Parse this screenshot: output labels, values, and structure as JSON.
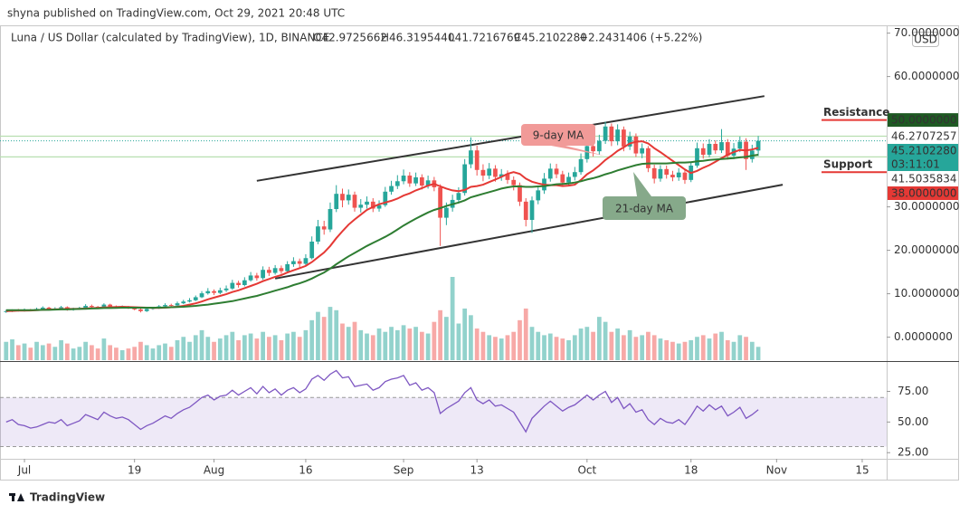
{
  "header": {
    "published": "shyna published on TradingView.com, Oct 29, 2021 20:48 UTC"
  },
  "footer": {
    "logo": "TradingView"
  },
  "chart_data": {
    "type": "candlestick",
    "title": "Luna / US Dollar (calculated by TradingView), 1D, BINANCE",
    "ohlc_labels": [
      "O42.9725662",
      "H46.3195440",
      "L41.7216769",
      "C45.2102280",
      "+2.2431406 (+5.22%)"
    ],
    "ohlc_color": "#26a69a",
    "currency": "USD",
    "up_color": "#26a69a",
    "down_color": "#ef5350",
    "x": [
      "2021-06-28",
      "2021-06-29",
      "2021-06-30",
      "2021-07-01",
      "2021-07-02",
      "2021-07-03",
      "2021-07-04",
      "2021-07-05",
      "2021-07-06",
      "2021-07-07",
      "2021-07-08",
      "2021-07-09",
      "2021-07-10",
      "2021-07-11",
      "2021-07-12",
      "2021-07-13",
      "2021-07-14",
      "2021-07-15",
      "2021-07-16",
      "2021-07-17",
      "2021-07-18",
      "2021-07-19",
      "2021-07-20",
      "2021-07-21",
      "2021-07-22",
      "2021-07-23",
      "2021-07-24",
      "2021-07-25",
      "2021-07-26",
      "2021-07-27",
      "2021-07-28",
      "2021-07-29",
      "2021-07-30",
      "2021-07-31",
      "2021-08-01",
      "2021-08-02",
      "2021-08-03",
      "2021-08-04",
      "2021-08-05",
      "2021-08-06",
      "2021-08-07",
      "2021-08-08",
      "2021-08-09",
      "2021-08-10",
      "2021-08-11",
      "2021-08-12",
      "2021-08-13",
      "2021-08-14",
      "2021-08-15",
      "2021-08-16",
      "2021-08-17",
      "2021-08-18",
      "2021-08-19",
      "2021-08-20",
      "2021-08-21",
      "2021-08-22",
      "2021-08-23",
      "2021-08-24",
      "2021-08-25",
      "2021-08-26",
      "2021-08-27",
      "2021-08-28",
      "2021-08-29",
      "2021-08-30",
      "2021-08-31",
      "2021-09-01",
      "2021-09-02",
      "2021-09-03",
      "2021-09-04",
      "2021-09-05",
      "2021-09-06",
      "2021-09-07",
      "2021-09-08",
      "2021-09-09",
      "2021-09-10",
      "2021-09-11",
      "2021-09-12",
      "2021-09-13",
      "2021-09-14",
      "2021-09-15",
      "2021-09-16",
      "2021-09-17",
      "2021-09-18",
      "2021-09-19",
      "2021-09-20",
      "2021-09-21",
      "2021-09-22",
      "2021-09-23",
      "2021-09-24",
      "2021-09-25",
      "2021-09-26",
      "2021-09-27",
      "2021-09-28",
      "2021-09-29",
      "2021-09-30",
      "2021-10-01",
      "2021-10-02",
      "2021-10-03",
      "2021-10-04",
      "2021-10-05",
      "2021-10-06",
      "2021-10-07",
      "2021-10-08",
      "2021-10-09",
      "2021-10-10",
      "2021-10-11",
      "2021-10-12",
      "2021-10-13",
      "2021-10-14",
      "2021-10-15",
      "2021-10-16",
      "2021-10-17",
      "2021-10-18",
      "2021-10-19",
      "2021-10-20",
      "2021-10-21",
      "2021-10-22",
      "2021-10-23",
      "2021-10-24",
      "2021-10-25",
      "2021-10-26",
      "2021-10-27",
      "2021-10-28",
      "2021-10-29"
    ],
    "open": [
      5.9,
      6.0,
      6.2,
      6.1,
      6.3,
      6.2,
      6.5,
      6.8,
      6.4,
      6.6,
      6.9,
      6.3,
      6.5,
      6.7,
      7.2,
      7.0,
      6.8,
      7.5,
      7.1,
      6.9,
      7.0,
      6.8,
      6.4,
      6.0,
      6.5,
      6.7,
      7.1,
      7.4,
      7.3,
      7.8,
      8.2,
      8.5,
      9.2,
      10.1,
      10.6,
      10.2,
      10.8,
      11.2,
      12.5,
      12.0,
      13.1,
      14.2,
      13.6,
      15.5,
      14.8,
      15.9,
      15.2,
      16.8,
      17.5,
      16.9,
      18.2,
      22.0,
      25.5,
      24.8,
      29.5,
      33.0,
      31.5,
      32.8,
      29.8,
      30.5,
      31.2,
      29.6,
      30.4,
      33.5,
      34.8,
      35.9,
      37.2,
      35.4,
      36.8,
      34.9,
      36.1,
      34.5,
      27.5,
      29.8,
      31.6,
      33.2,
      39.8,
      43.0,
      38.5,
      37.2,
      38.8,
      36.9,
      37.5,
      36.2,
      35.0,
      31.2,
      27.0,
      31.5,
      33.8,
      36.5,
      38.8,
      37.5,
      35.6,
      36.9,
      38.0,
      41.0,
      44.0,
      42.8,
      45.2,
      48.5,
      45.1,
      47.8,
      43.9,
      46.2,
      42.3,
      43.5,
      38.9,
      36.5,
      38.7,
      37.4,
      36.8,
      37.9,
      36.2,
      39.5,
      43.5,
      42.0,
      44.5,
      43.0,
      44.9,
      41.8,
      43.4,
      45.0,
      41.0,
      42.9725662
    ],
    "high": [
      6.3,
      6.4,
      6.5,
      6.6,
      6.5,
      6.8,
      7.1,
      7.0,
      6.9,
      7.2,
      7.1,
      6.8,
      7.0,
      7.6,
      7.5,
      7.2,
      7.8,
      7.7,
      7.3,
      7.3,
      7.2,
      7.0,
      6.6,
      6.8,
      7.0,
      7.4,
      7.8,
      7.7,
      8.2,
      8.6,
      9.0,
      9.6,
      10.6,
      11.3,
      11.0,
      11.4,
      11.9,
      13.2,
      13.0,
      13.8,
      15.0,
      14.8,
      16.3,
      16.2,
      16.6,
      16.5,
      17.5,
      18.4,
      18.1,
      19.1,
      23.2,
      27.0,
      26.8,
      31.0,
      35.0,
      34.2,
      34.0,
      33.5,
      31.8,
      32.4,
      32.0,
      31.5,
      34.6,
      36.0,
      37.3,
      38.6,
      38.0,
      37.9,
      37.5,
      37.2,
      36.9,
      35.2,
      31.0,
      32.8,
      34.5,
      41.0,
      46.0,
      44.1,
      39.8,
      40.1,
      39.6,
      38.7,
      38.4,
      37.0,
      35.6,
      32.0,
      32.4,
      34.9,
      37.8,
      40.0,
      39.9,
      38.3,
      37.9,
      39.2,
      42.3,
      45.5,
      45.2,
      46.6,
      49.6,
      49.2,
      49.0,
      48.5,
      47.3,
      46.9,
      44.6,
      44.0,
      39.7,
      39.6,
      39.5,
      38.3,
      38.9,
      38.6,
      40.4,
      44.8,
      44.6,
      45.6,
      45.3,
      47.9,
      45.6,
      44.7,
      46.2,
      45.8,
      44.3,
      46.319544
    ],
    "low": [
      5.6,
      5.8,
      5.9,
      5.9,
      6.0,
      6.1,
      6.3,
      6.2,
      6.2,
      6.4,
      6.1,
      6.1,
      6.3,
      6.5,
      6.8,
      6.5,
      6.6,
      6.9,
      6.7,
      6.7,
      6.5,
      6.2,
      5.7,
      5.8,
      6.3,
      6.5,
      6.9,
      7.0,
      7.1,
      7.6,
      8.0,
      8.3,
      9.0,
      9.8,
      9.7,
      9.9,
      10.4,
      10.9,
      11.4,
      11.7,
      12.8,
      13.0,
      13.2,
      14.1,
      14.4,
      14.6,
      14.9,
      16.2,
      16.1,
      16.5,
      17.9,
      21.4,
      23.6,
      24.2,
      28.8,
      29.9,
      30.5,
      28.9,
      28.7,
      29.6,
      28.8,
      28.9,
      30.0,
      32.8,
      34.1,
      35.2,
      34.6,
      34.8,
      34.0,
      34.2,
      33.6,
      21.0,
      25.8,
      28.9,
      30.8,
      32.6,
      38.9,
      37.2,
      35.9,
      36.4,
      35.8,
      36.0,
      35.3,
      33.8,
      30.2,
      25.5,
      24.0,
      30.6,
      33.0,
      35.8,
      36.6,
      34.8,
      34.9,
      36.1,
      37.4,
      40.2,
      41.6,
      42.0,
      44.5,
      44.0,
      44.2,
      42.8,
      43.1,
      41.5,
      41.2,
      38.0,
      35.4,
      35.8,
      36.5,
      35.9,
      36.0,
      35.3,
      35.7,
      39.0,
      41.1,
      41.4,
      42.2,
      42.4,
      40.9,
      41.0,
      42.6,
      38.5,
      40.2,
      41.7216769
    ],
    "close": [
      6.0,
      6.2,
      6.1,
      6.3,
      6.2,
      6.5,
      6.8,
      6.4,
      6.6,
      6.9,
      6.3,
      6.5,
      6.7,
      7.2,
      7.0,
      6.8,
      7.5,
      7.1,
      6.9,
      7.0,
      6.8,
      6.4,
      6.0,
      6.5,
      6.7,
      7.1,
      7.4,
      7.3,
      7.8,
      8.2,
      8.5,
      9.2,
      10.1,
      10.6,
      10.2,
      10.8,
      11.2,
      12.5,
      12.0,
      13.1,
      14.2,
      13.6,
      15.5,
      14.8,
      15.9,
      15.2,
      16.8,
      17.5,
      16.9,
      18.2,
      22.0,
      25.5,
      24.8,
      29.5,
      33.0,
      31.5,
      32.8,
      29.8,
      30.5,
      31.2,
      29.6,
      30.4,
      33.5,
      34.8,
      35.9,
      37.2,
      35.4,
      36.8,
      34.9,
      36.1,
      34.5,
      27.5,
      29.8,
      31.6,
      33.2,
      39.8,
      43.0,
      38.5,
      37.2,
      38.8,
      36.9,
      37.5,
      36.2,
      35.0,
      31.2,
      27.0,
      31.5,
      33.8,
      36.5,
      38.8,
      37.5,
      35.6,
      36.9,
      38.0,
      41.0,
      44.0,
      42.8,
      45.2,
      48.5,
      45.1,
      47.8,
      43.9,
      46.2,
      42.3,
      43.5,
      38.9,
      36.5,
      38.7,
      37.4,
      36.8,
      37.9,
      36.2,
      39.5,
      43.5,
      42.0,
      44.5,
      43.0,
      44.9,
      41.8,
      43.4,
      45.0,
      41.0,
      42.9725662,
      45.210228
    ],
    "volume": [
      22,
      25,
      18,
      20,
      15,
      22,
      18,
      20,
      16,
      24,
      20,
      14,
      16,
      22,
      18,
      14,
      26,
      18,
      15,
      12,
      14,
      16,
      22,
      18,
      14,
      18,
      20,
      16,
      24,
      28,
      22,
      30,
      36,
      28,
      22,
      26,
      30,
      34,
      24,
      30,
      32,
      26,
      34,
      28,
      30,
      24,
      32,
      34,
      28,
      36,
      48,
      58,
      52,
      64,
      60,
      44,
      40,
      46,
      36,
      32,
      30,
      38,
      34,
      40,
      36,
      42,
      38,
      40,
      34,
      32,
      46,
      60,
      52,
      100,
      44,
      62,
      54,
      38,
      34,
      30,
      28,
      26,
      30,
      34,
      48,
      62,
      40,
      34,
      30,
      32,
      28,
      26,
      24,
      30,
      38,
      40,
      34,
      52,
      46,
      34,
      38,
      30,
      36,
      28,
      30,
      34,
      30,
      26,
      24,
      22,
      20,
      22,
      24,
      28,
      30,
      26,
      32,
      34,
      24,
      22,
      30,
      28,
      22,
      16
    ],
    "series": [
      {
        "name": "9-day MA",
        "color": "#e53935",
        "box_color": "#f19a98",
        "values": [
          6.0,
          6.05,
          6.1,
          6.1,
          6.15,
          6.2,
          6.3,
          6.35,
          6.4,
          6.45,
          6.5,
          6.5,
          6.55,
          6.6,
          6.7,
          6.75,
          6.85,
          6.9,
          6.95,
          7.0,
          6.95,
          6.9,
          6.85,
          6.8,
          6.75,
          6.75,
          6.8,
          6.9,
          7.0,
          7.2,
          7.5,
          7.8,
          8.2,
          8.7,
          9.1,
          9.5,
          9.9,
          10.4,
          10.8,
          11.3,
          11.8,
          12.3,
          12.9,
          13.4,
          13.9,
          14.3,
          14.9,
          15.4,
          15.9,
          16.4,
          17.3,
          18.4,
          19.5,
          21.0,
          22.8,
          24.4,
          25.9,
          27.1,
          28.2,
          29.3,
          30.0,
          30.6,
          31.0,
          31.4,
          31.9,
          32.6,
          33.1,
          33.8,
          34.3,
          34.9,
          35.3,
          34.7,
          34.2,
          33.8,
          33.6,
          33.9,
          34.6,
          34.8,
          35.1,
          35.7,
          36.3,
          36.9,
          37.6,
          38.0,
          37.6,
          36.5,
          35.8,
          35.4,
          35.1,
          35.0,
          35.0,
          34.8,
          34.9,
          35.1,
          36.2,
          37.5,
          38.4,
          39.5,
          40.8,
          41.8,
          42.9,
          43.7,
          44.6,
          45.0,
          45.1,
          44.6,
          43.5,
          42.6,
          41.6,
          40.6,
          39.6,
          38.6,
          37.8,
          38.3,
          39.0,
          39.6,
          40.4,
          41.2,
          42.0,
          42.6,
          43.1,
          43.0,
          43.2,
          43.6
        ]
      },
      {
        "name": "21-day MA",
        "color": "#2e7d32",
        "box_color": "#86a98a",
        "values": [
          6.2,
          6.2,
          6.2,
          6.2,
          6.2,
          6.25,
          6.3,
          6.3,
          6.35,
          6.4,
          6.4,
          6.45,
          6.5,
          6.55,
          6.6,
          6.65,
          6.7,
          6.7,
          6.75,
          6.8,
          6.8,
          6.8,
          6.8,
          6.8,
          6.8,
          6.8,
          6.85,
          6.9,
          6.95,
          7.0,
          7.1,
          7.2,
          7.35,
          7.5,
          7.7,
          7.9,
          8.1,
          8.3,
          8.6,
          8.9,
          9.2,
          9.5,
          9.9,
          10.3,
          10.7,
          11.1,
          11.5,
          12.0,
          12.4,
          12.9,
          13.5,
          14.2,
          14.9,
          15.8,
          16.8,
          17.7,
          18.6,
          19.4,
          20.2,
          21.0,
          21.7,
          22.4,
          23.1,
          23.9,
          24.8,
          25.7,
          26.5,
          27.3,
          28.0,
          28.7,
          29.3,
          29.7,
          30.2,
          30.6,
          31.0,
          31.5,
          32.2,
          32.6,
          33.0,
          33.4,
          33.8,
          34.2,
          34.5,
          34.7,
          34.7,
          34.6,
          34.6,
          34.7,
          34.8,
          35.0,
          35.2,
          35.3,
          35.4,
          35.6,
          35.9,
          36.3,
          36.6,
          37.0,
          37.5,
          37.9,
          38.4,
          38.8,
          39.2,
          39.6,
          39.9,
          40.0,
          40.0,
          40.0,
          40.0,
          40.1,
          40.2,
          40.2,
          40.3,
          40.5,
          40.6,
          40.8,
          40.9,
          41.0,
          41.1,
          41.2,
          41.4,
          41.5,
          41.8,
          42.0
        ]
      }
    ],
    "xlim": [
      "2021-06-27",
      "2021-11-19"
    ],
    "xticks": [
      {
        "value": "2021-07-01",
        "label": "Jul"
      },
      {
        "value": "2021-07-19",
        "label": "19"
      },
      {
        "value": "2021-08-01",
        "label": "Aug"
      },
      {
        "value": "2021-08-16",
        "label": "16"
      },
      {
        "value": "2021-09-01",
        "label": "Sep"
      },
      {
        "value": "2021-09-13",
        "label": "13"
      },
      {
        "value": "2021-10-01",
        "label": "Oct"
      },
      {
        "value": "2021-10-18",
        "label": "18"
      },
      {
        "value": "2021-11-01",
        "label": "Nov"
      },
      {
        "value": "2021-11-15",
        "label": "15"
      }
    ],
    "ylim": [
      -3,
      72
    ],
    "yticks": [
      {
        "value": 0,
        "label": "0.0000000"
      },
      {
        "value": 10,
        "label": "10.0000000"
      },
      {
        "value": 20,
        "label": "20.0000000"
      },
      {
        "value": 30,
        "label": "30.0000000"
      },
      {
        "value": 60,
        "label": "60.0000000"
      },
      {
        "value": 70,
        "label": "70.0000000"
      }
    ],
    "levels": [
      {
        "value": 50,
        "label": "50.0000000",
        "color": "#1e5a23"
      },
      {
        "value": 46.2707257,
        "label": "46.2707257",
        "color": "#ffffff"
      },
      {
        "value": 45.210228,
        "label": "45.2102280",
        "sublabel": "03:11:01",
        "color": "#26a69a"
      },
      {
        "value": 41.5035834,
        "label": "41.5035834",
        "color": "#ffffff"
      },
      {
        "value": 38,
        "label": "38.0000000",
        "color": "#e53935"
      }
    ],
    "annotations": [
      {
        "text": "Resistance",
        "value": 50,
        "color": "#e53935"
      },
      {
        "text": "Support",
        "value": 38,
        "color": "#1e5a23"
      }
    ],
    "channel": [
      {
        "start": [
          "2021-08-08",
          36
        ],
        "end": [
          "2021-10-30",
          55.5
        ]
      },
      {
        "start": [
          "2021-08-11",
          13.5
        ],
        "end": [
          "2021-11-02",
          35.1
        ]
      }
    ],
    "rsi": {
      "color": "#7e57c2",
      "ylim": [
        20,
        99
      ],
      "band": [
        30,
        70
      ],
      "yticks": [
        {
          "value": 25,
          "label": "25.00"
        },
        {
          "value": 50,
          "label": "50.00"
        },
        {
          "value": 75,
          "label": "75.00"
        }
      ],
      "values": [
        50,
        52,
        48,
        47,
        45,
        46,
        48,
        50,
        49,
        52,
        47,
        49,
        51,
        56,
        54,
        52,
        58,
        55,
        53,
        54,
        52,
        48,
        44,
        47,
        49,
        52,
        55,
        53,
        57,
        60,
        62,
        66,
        70,
        72,
        68,
        71,
        72,
        76,
        72,
        75,
        78,
        73,
        79,
        74,
        77,
        72,
        76,
        78,
        74,
        77,
        85,
        88,
        84,
        89,
        92,
        86,
        87,
        79,
        80,
        81,
        76,
        78,
        83,
        85,
        86,
        88,
        80,
        82,
        76,
        78,
        74,
        57,
        61,
        64,
        67,
        74,
        78,
        68,
        65,
        68,
        63,
        64,
        61,
        58,
        50,
        42,
        53,
        58,
        63,
        67,
        63,
        59,
        62,
        64,
        68,
        72,
        68,
        72,
        75,
        66,
        70,
        61,
        65,
        58,
        60,
        52,
        48,
        53,
        50,
        49,
        52,
        48,
        55,
        63,
        59,
        64,
        60,
        63,
        55,
        58,
        62,
        53,
        56,
        60
      ]
    }
  }
}
